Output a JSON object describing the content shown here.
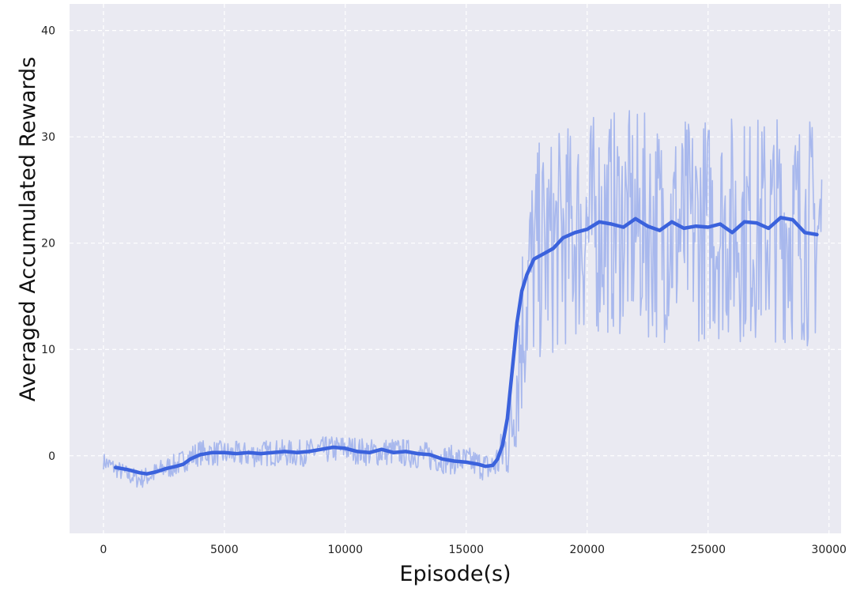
{
  "chart_data": {
    "type": "line",
    "title": "",
    "xlabel": "Episode(s)",
    "ylabel": "Averaged Accumulated Rewards",
    "xlim": [
      -1400,
      30500
    ],
    "ylim": [
      -7.3,
      42.5
    ],
    "xticks": [
      0,
      5000,
      10000,
      15000,
      20000,
      25000,
      30000
    ],
    "xtick_labels": [
      "0",
      "5000",
      "10000",
      "15000",
      "20000",
      "25000",
      "30000"
    ],
    "yticks": [
      0,
      10,
      20,
      30,
      40
    ],
    "ytick_labels": [
      "0",
      "10",
      "20",
      "30",
      "40"
    ],
    "grid": true,
    "legend": "none",
    "background": "#eaeaf2",
    "grid_color": "#ffffff",
    "series": [
      {
        "role": "raw",
        "color": "#a4b5ec",
        "x": [
          0,
          500,
          1000,
          1500,
          2000,
          2500,
          3000,
          3500,
          4000,
          5000,
          6000,
          7000,
          8000,
          9000,
          10000,
          11000,
          12000,
          13000,
          14000,
          15000,
          15500,
          16000,
          16300,
          16600,
          16900,
          17100,
          17300,
          17600,
          18000,
          18500,
          19000,
          20000,
          21000,
          22000,
          23000,
          24000,
          25000,
          26000,
          27000,
          28000,
          29000,
          29700
        ],
        "y": [
          -0.5,
          -1.2,
          -1.8,
          -2.2,
          -1.8,
          -1.2,
          -0.9,
          -0.2,
          0.3,
          0.2,
          0.1,
          0.3,
          0.2,
          0.5,
          0.7,
          0.3,
          0.4,
          0.1,
          -0.3,
          -0.5,
          -0.8,
          -1.2,
          -0.5,
          0.5,
          3.0,
          8.0,
          12.0,
          17.0,
          19.0,
          19.5,
          20.5,
          21.5,
          22.0,
          21.8,
          21.4,
          21.2,
          21.6,
          21.5,
          21.3,
          21.6,
          21.2,
          21.0
        ],
        "band_amplitude": {
          "x": [
            0,
            4000,
            16000,
            16500,
            17000,
            17200,
            18000,
            30000
          ],
          "noise": [
            0.8,
            1.2,
            1.4,
            2.5,
            6.0,
            9.0,
            10.5,
            11.0
          ]
        }
      },
      {
        "role": "smoothed",
        "color": "#3b62dc",
        "x": [
          500,
          1000,
          1500,
          1800,
          2200,
          2600,
          3000,
          3300,
          3600,
          4000,
          4500,
          5000,
          5500,
          6000,
          6500,
          7000,
          7500,
          8000,
          8500,
          9000,
          9500,
          10000,
          10500,
          11000,
          11500,
          12000,
          12500,
          13000,
          13500,
          14000,
          14500,
          15000,
          15500,
          15800,
          16100,
          16300,
          16500,
          16700,
          16900,
          17100,
          17300,
          17500,
          17800,
          18200,
          18600,
          19000,
          19500,
          20000,
          20500,
          21000,
          21500,
          22000,
          22500,
          23000,
          23500,
          24000,
          24500,
          25000,
          25500,
          26000,
          26500,
          27000,
          27500,
          28000,
          28500,
          29000,
          29500
        ],
        "y": [
          -1.1,
          -1.3,
          -1.6,
          -1.7,
          -1.5,
          -1.2,
          -1.0,
          -0.8,
          -0.3,
          0.1,
          0.3,
          0.3,
          0.2,
          0.3,
          0.2,
          0.3,
          0.4,
          0.3,
          0.4,
          0.6,
          0.8,
          0.7,
          0.4,
          0.3,
          0.6,
          0.3,
          0.4,
          0.2,
          0.1,
          -0.3,
          -0.5,
          -0.6,
          -0.8,
          -1.0,
          -0.9,
          -0.3,
          1.0,
          3.5,
          8.0,
          12.5,
          15.5,
          17.0,
          18.5,
          19.0,
          19.5,
          20.5,
          21.0,
          21.3,
          22.0,
          21.8,
          21.5,
          22.3,
          21.6,
          21.2,
          22.0,
          21.4,
          21.6,
          21.5,
          21.8,
          21.0,
          22.0,
          21.9,
          21.4,
          22.4,
          22.2,
          21.0,
          20.8
        ]
      }
    ]
  }
}
